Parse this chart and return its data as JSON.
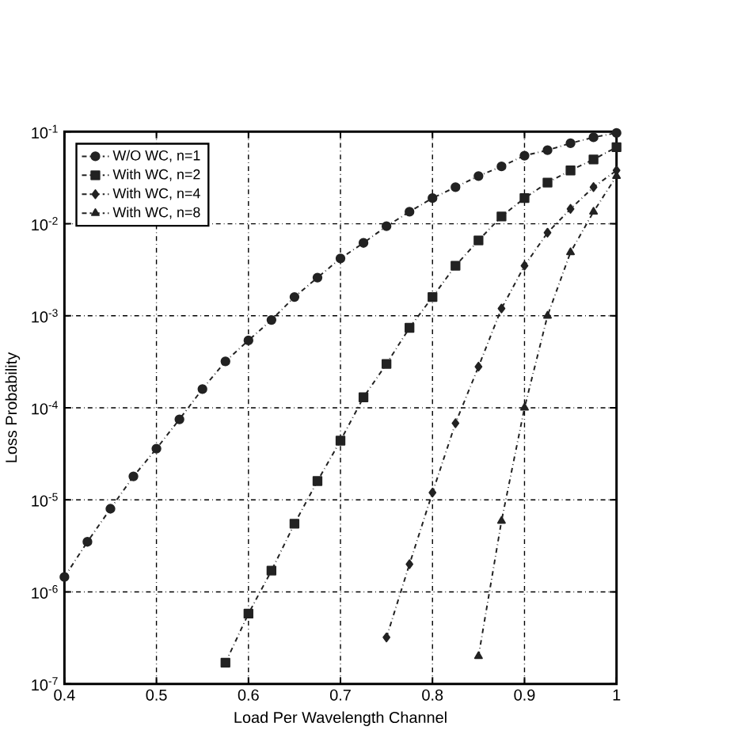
{
  "chart_data": {
    "type": "line",
    "xlabel": "Load Per Wavelength Channel",
    "ylabel": "Loss Probability",
    "log": "y",
    "grid": true,
    "legend": "top left",
    "line_style": "dashed",
    "xlim": [
      0.4,
      1
    ],
    "ylim": [
      1e-07,
      0.1
    ],
    "xticks": [
      0.4,
      0.5,
      0.6,
      0.7,
      0.8,
      0.9,
      1
    ],
    "yticks": [
      {
        "value": 1e-07,
        "label": "10$^{-7}$"
      },
      {
        "value": 1e-06,
        "label": "10$^{-6}$"
      },
      {
        "value": 1e-05,
        "label": "10$^{-5}$"
      },
      {
        "value": 0.0001,
        "label": "10$^{-4}$"
      },
      {
        "value": 0.001,
        "label": "10$^{-3}$"
      },
      {
        "value": 0.01,
        "label": "10$^{-2}$"
      },
      {
        "value": 0.1,
        "label": "10$^{-1}$"
      }
    ],
    "series": [
      {
        "name": "W/O WC, n=1",
        "color": "#222222",
        "marker": "circle",
        "x": [
          0.4,
          0.425,
          0.45,
          0.475,
          0.5,
          0.525,
          0.55,
          0.575,
          0.6,
          0.625,
          0.65,
          0.675,
          0.7,
          0.725,
          0.75,
          0.775,
          0.8,
          0.825,
          0.85,
          0.875,
          0.9,
          0.925,
          0.95,
          0.975,
          1.0
        ],
        "values": [
          1.45e-06,
          3.5e-06,
          8e-06,
          1.8e-05,
          3.6e-05,
          7.5e-05,
          0.00016,
          0.00032,
          0.00054,
          0.0009,
          0.0016,
          0.0026,
          0.0042,
          0.0062,
          0.0094,
          0.0135,
          0.019,
          0.025,
          0.033,
          0.042,
          0.055,
          0.063,
          0.075,
          0.087,
          0.097
        ]
      },
      {
        "name": "With WC, n=2",
        "color": "#222222",
        "marker": "square",
        "x": [
          0.575,
          0.6,
          0.625,
          0.65,
          0.675,
          0.7,
          0.725,
          0.75,
          0.775,
          0.8,
          0.825,
          0.85,
          0.875,
          0.9,
          0.925,
          0.95,
          0.975,
          1.0
        ],
        "values": [
          1.7e-07,
          5.8e-07,
          1.7e-06,
          5.5e-06,
          1.6e-05,
          4.4e-05,
          0.00013,
          0.0003,
          0.00074,
          0.0016,
          0.0035,
          0.0066,
          0.012,
          0.019,
          0.028,
          0.038,
          0.05,
          0.068
        ]
      },
      {
        "name": "With WC, n=4",
        "color": "#222222",
        "marker": "diamond",
        "x": [
          0.75,
          0.775,
          0.8,
          0.825,
          0.85,
          0.875,
          0.9,
          0.925,
          0.95,
          0.975,
          1.0
        ],
        "values": [
          3.2e-07,
          2e-06,
          1.2e-05,
          6.8e-05,
          0.00028,
          0.0012,
          0.0035,
          0.008,
          0.0145,
          0.025,
          0.038
        ]
      },
      {
        "name": "With WC, n=8",
        "color": "#222222",
        "marker": "triangle",
        "x": [
          0.85,
          0.875,
          0.9,
          0.925,
          0.95,
          0.975,
          1.0
        ],
        "values": [
          2e-07,
          5.9e-06,
          0.0001,
          0.001,
          0.0049,
          0.0135,
          0.033
        ]
      }
    ]
  }
}
